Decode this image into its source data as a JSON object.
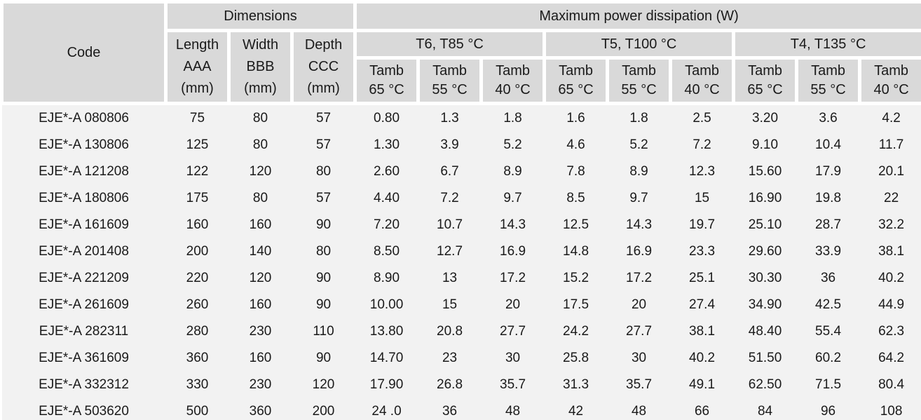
{
  "table": {
    "header": {
      "code_label": "Code",
      "dimensions_label": "Dimensions",
      "power_label": "Maximum power dissipation (W)",
      "dimension_columns": [
        {
          "line1": "Length",
          "line2": "AAA",
          "line3": "(mm)"
        },
        {
          "line1": "Width",
          "line2": "BBB",
          "line3": "(mm)"
        },
        {
          "line1": "Depth",
          "line2": "CCC",
          "line3": "(mm)"
        }
      ],
      "temp_classes": [
        {
          "label": "T6, T85 °C"
        },
        {
          "label": "T5, T100 °C"
        },
        {
          "label": "T4, T135 °C"
        }
      ],
      "tamb_columns": [
        {
          "line1": "Tamb",
          "line2": "65 °C"
        },
        {
          "line1": "Tamb",
          "line2": "55 °C"
        },
        {
          "line1": "Tamb",
          "line2": "40 °C"
        },
        {
          "line1": "Tamb",
          "line2": "65 °C"
        },
        {
          "line1": "Tamb",
          "line2": "55 °C"
        },
        {
          "line1": "Tamb",
          "line2": "40 °C"
        },
        {
          "line1": "Tamb",
          "line2": "65 °C"
        },
        {
          "line1": "Tamb",
          "line2": "55 °C"
        },
        {
          "line1": "Tamb",
          "line2": "40 °C"
        }
      ]
    },
    "rows": [
      {
        "code": "EJE*-A 080806",
        "cells": [
          "75",
          "80",
          "57",
          "0.80",
          "1.3",
          "1.8",
          "1.6",
          "1.8",
          "2.5",
          "3.20",
          "3.6",
          "4.2"
        ]
      },
      {
        "code": "EJE*-A 130806",
        "cells": [
          "125",
          "80",
          "57",
          "1.30",
          "3.9",
          "5.2",
          "4.6",
          "5.2",
          "7.2",
          "9.10",
          "10.4",
          "11.7"
        ]
      },
      {
        "code": "EJE*-A 121208",
        "cells": [
          "122",
          "120",
          "80",
          "2.60",
          "6.7",
          "8.9",
          "7.8",
          "8.9",
          "12.3",
          "15.60",
          "17.9",
          "20.1"
        ]
      },
      {
        "code": "EJE*-A 180806",
        "cells": [
          "175",
          "80",
          "57",
          "4.40",
          "7.2",
          "9.7",
          "8.5",
          "9.7",
          "15",
          "16.90",
          "19.8",
          "22"
        ]
      },
      {
        "code": "EJE*-A 161609",
        "cells": [
          "160",
          "160",
          "90",
          "7.20",
          "10.7",
          "14.3",
          "12.5",
          "14.3",
          "19.7",
          "25.10",
          "28.7",
          "32.2"
        ]
      },
      {
        "code": "EJE*-A 201408",
        "cells": [
          "200",
          "140",
          "80",
          "8.50",
          "12.7",
          "16.9",
          "14.8",
          "16.9",
          "23.3",
          "29.60",
          "33.9",
          "38.1"
        ]
      },
      {
        "code": "EJE*-A 221209",
        "cells": [
          "220",
          "120",
          "90",
          "8.90",
          "13",
          "17.2",
          "15.2",
          "17.2",
          "25.1",
          "30.30",
          "36",
          "40.2"
        ]
      },
      {
        "code": "EJE*-A 261609",
        "cells": [
          "260",
          "160",
          "90",
          "10.00",
          "15",
          "20",
          "17.5",
          "20",
          "27.4",
          "34.90",
          "42.5",
          "44.9"
        ]
      },
      {
        "code": "EJE*-A 282311",
        "cells": [
          "280",
          "230",
          "110",
          "13.80",
          "20.8",
          "27.7",
          "24.2",
          "27.7",
          "38.1",
          "48.40",
          "55.4",
          "62.3"
        ]
      },
      {
        "code": "EJE*-A 361609",
        "cells": [
          "360",
          "160",
          "90",
          "14.70",
          "23",
          "30",
          "25.8",
          "30",
          "40.2",
          "51.50",
          "60.2",
          "64.2"
        ]
      },
      {
        "code": "EJE*-A 332312",
        "cells": [
          "330",
          "230",
          "120",
          "17.90",
          "26.8",
          "35.7",
          "31.3",
          "35.7",
          "49.1",
          "62.50",
          "71.5",
          "80.4"
        ]
      },
      {
        "code": "EJE*-A 503620",
        "cells": [
          "500",
          "360",
          "200",
          "24 .0",
          "36",
          "48",
          "42",
          "48",
          "66",
          "84",
          "96",
          "108"
        ]
      }
    ]
  },
  "colors": {
    "header_bg": "#d9d9d9",
    "body_bg": "#f2f2f2",
    "divider": "#ffffff",
    "text": "#1a1a1a"
  }
}
